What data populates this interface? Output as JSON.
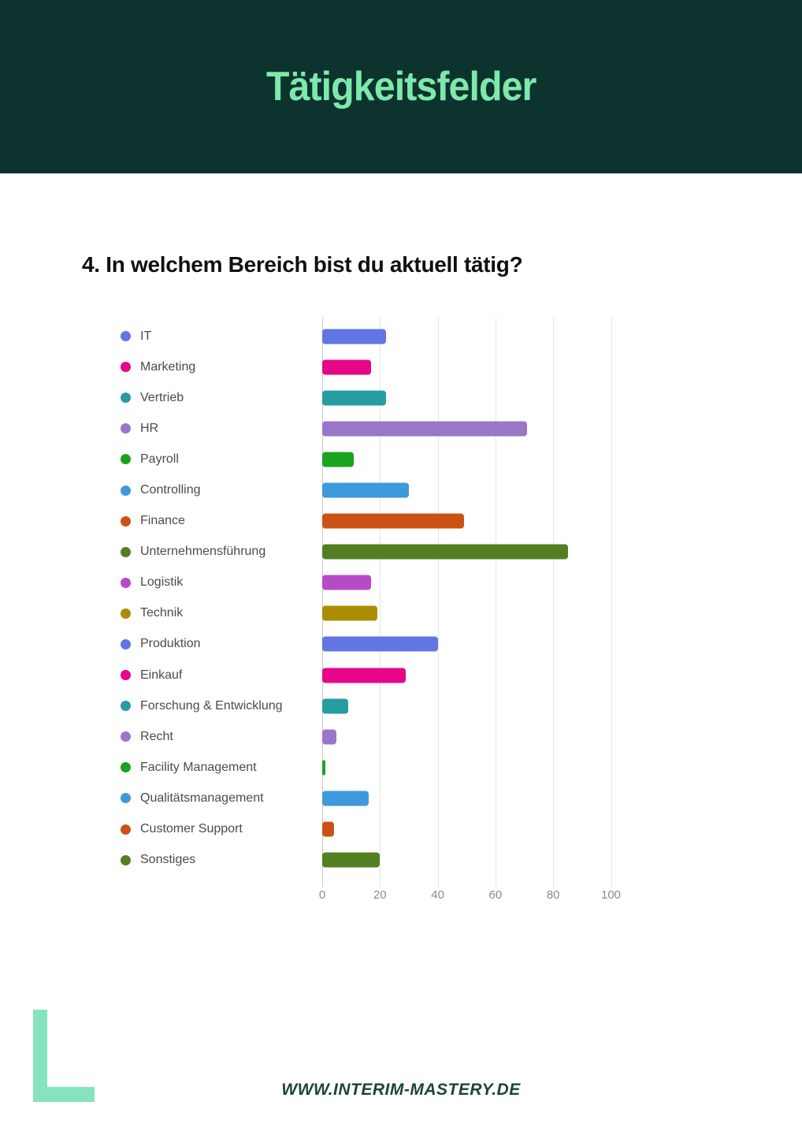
{
  "header": {
    "title": "Tätigkeitsfelder"
  },
  "question": {
    "text": "4. In welchem Bereich bist du aktuell tätig?"
  },
  "footer": {
    "url": "WWW.INTERIM-MASTERY.DE"
  },
  "colors": {
    "header_bg": "#0d332e",
    "header_title": "#7de9ac",
    "logo_mint": "#87e3bd",
    "footer_text": "#1d443c",
    "legend_text": "#4b4b4b",
    "axis_label": "#8a8a8a",
    "gridline": "#e5e5e5",
    "axis_line": "#c8c8c8"
  },
  "chart_data": {
    "type": "bar",
    "orientation": "horizontal",
    "title": "4. In welchem Bereich bist du aktuell tätig?",
    "categories": [
      "IT",
      "Marketing",
      "Vertrieb",
      "HR",
      "Payroll",
      "Controlling",
      "Finance",
      "Unternehmensführung",
      "Logistik",
      "Technik",
      "Produktion",
      "Einkauf",
      "Forschung & Entwicklung",
      "Recht",
      "Facility Management",
      "Qualitätsmanagement",
      "Customer Support",
      "Sonstiges"
    ],
    "values": [
      22,
      17,
      22,
      71,
      11,
      30,
      49,
      85,
      17,
      19,
      40,
      29,
      9,
      5,
      1,
      16,
      4,
      20
    ],
    "colors": [
      "#6175e3",
      "#e5068a",
      "#269ca1",
      "#9a76c9",
      "#1aa31e",
      "#3e99dd",
      "#cb5215",
      "#527f22",
      "#b74ac7",
      "#ab8d04",
      "#6175e3",
      "#e5068a",
      "#269ca1",
      "#9a76c9",
      "#1aa31e",
      "#3e99dd",
      "#cb5215",
      "#527f22"
    ],
    "x_ticks": [
      0,
      20,
      40,
      60,
      80,
      100
    ],
    "xlabel": "",
    "ylabel": "",
    "xlim": [
      0,
      100
    ],
    "grid": true,
    "legend_position": "left"
  }
}
